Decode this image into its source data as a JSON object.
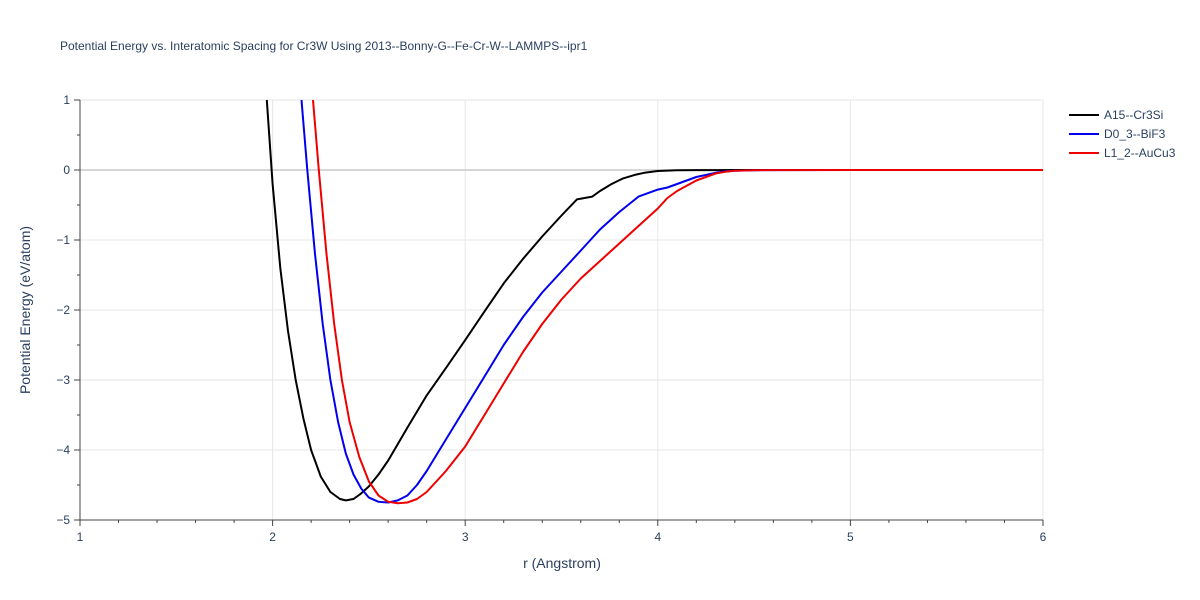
{
  "chart_data": {
    "type": "line",
    "title": "Potential Energy vs. Interatomic Spacing for Cr3W Using 2013--Bonny-G--Fe-Cr-W--LAMMPS--ipr1",
    "xlabel": "r (Angstrom)",
    "ylabel": "Potential Energy (eV/atom)",
    "xlim": [
      1,
      6
    ],
    "ylim": [
      -5,
      1
    ],
    "xticks": [
      1,
      2,
      3,
      4,
      5,
      6
    ],
    "xtick_labels": [
      "1",
      "2",
      "3",
      "4",
      "5",
      "6"
    ],
    "yticks": [
      1,
      0,
      -1,
      -2,
      -3,
      -4,
      -5
    ],
    "ytick_labels": [
      "1",
      "0",
      "−1",
      "−2",
      "−3",
      "−4",
      "−5"
    ],
    "grid": true,
    "legend_position": "top-right",
    "series": [
      {
        "name": "A15--Cr3Si",
        "color": "#000000",
        "x": [
          1.97,
          2.0,
          2.04,
          2.08,
          2.12,
          2.16,
          2.2,
          2.25,
          2.3,
          2.35,
          2.38,
          2.42,
          2.46,
          2.5,
          2.55,
          2.6,
          2.7,
          2.8,
          2.9,
          3.0,
          3.1,
          3.2,
          3.3,
          3.4,
          3.5,
          3.58,
          3.62,
          3.66,
          3.7,
          3.76,
          3.82,
          3.88,
          3.93,
          4.0,
          4.1,
          4.2,
          4.3,
          4.4,
          4.5,
          5.0,
          5.5,
          6.0
        ],
        "y": [
          1.0,
          -0.2,
          -1.4,
          -2.3,
          -3.0,
          -3.55,
          -4.0,
          -4.38,
          -4.6,
          -4.7,
          -4.72,
          -4.7,
          -4.62,
          -4.52,
          -4.35,
          -4.15,
          -3.68,
          -3.22,
          -2.83,
          -2.43,
          -2.02,
          -1.62,
          -1.27,
          -0.95,
          -0.65,
          -0.42,
          -0.4,
          -0.38,
          -0.3,
          -0.2,
          -0.12,
          -0.07,
          -0.04,
          -0.015,
          -0.005,
          -0.002,
          -0.001,
          0,
          0,
          0,
          0,
          0
        ]
      },
      {
        "name": "D0_3--BiF3",
        "color": "#0000ee",
        "x": [
          2.15,
          2.18,
          2.22,
          2.26,
          2.3,
          2.34,
          2.38,
          2.42,
          2.46,
          2.5,
          2.55,
          2.6,
          2.65,
          2.7,
          2.75,
          2.8,
          2.9,
          3.0,
          3.1,
          3.2,
          3.3,
          3.4,
          3.5,
          3.6,
          3.7,
          3.8,
          3.9,
          4.0,
          4.05,
          4.1,
          4.2,
          4.3,
          4.35,
          4.4,
          4.5,
          5.0,
          5.5,
          6.0
        ],
        "y": [
          1.0,
          0.0,
          -1.2,
          -2.2,
          -3.0,
          -3.6,
          -4.05,
          -4.35,
          -4.55,
          -4.68,
          -4.74,
          -4.75,
          -4.72,
          -4.65,
          -4.5,
          -4.3,
          -3.85,
          -3.4,
          -2.95,
          -2.5,
          -2.1,
          -1.75,
          -1.45,
          -1.15,
          -0.85,
          -0.6,
          -0.38,
          -0.28,
          -0.25,
          -0.2,
          -0.1,
          -0.04,
          -0.02,
          -0.01,
          -0.003,
          0,
          0,
          0
        ]
      },
      {
        "name": "L1_2--AuCu3",
        "color": "#ee0000",
        "x": [
          2.21,
          2.24,
          2.28,
          2.32,
          2.36,
          2.4,
          2.45,
          2.5,
          2.55,
          2.6,
          2.65,
          2.7,
          2.75,
          2.8,
          2.9,
          3.0,
          3.1,
          3.2,
          3.3,
          3.4,
          3.5,
          3.6,
          3.7,
          3.8,
          3.9,
          4.0,
          4.05,
          4.1,
          4.2,
          4.3,
          4.35,
          4.4,
          4.5,
          5.0,
          5.5,
          6.0
        ],
        "y": [
          1.0,
          0.0,
          -1.2,
          -2.2,
          -3.0,
          -3.6,
          -4.1,
          -4.45,
          -4.65,
          -4.74,
          -4.76,
          -4.75,
          -4.7,
          -4.6,
          -4.3,
          -3.95,
          -3.5,
          -3.05,
          -2.6,
          -2.2,
          -1.85,
          -1.55,
          -1.3,
          -1.05,
          -0.8,
          -0.55,
          -0.4,
          -0.3,
          -0.15,
          -0.05,
          -0.025,
          -0.01,
          -0.003,
          0,
          0,
          0
        ]
      }
    ]
  }
}
